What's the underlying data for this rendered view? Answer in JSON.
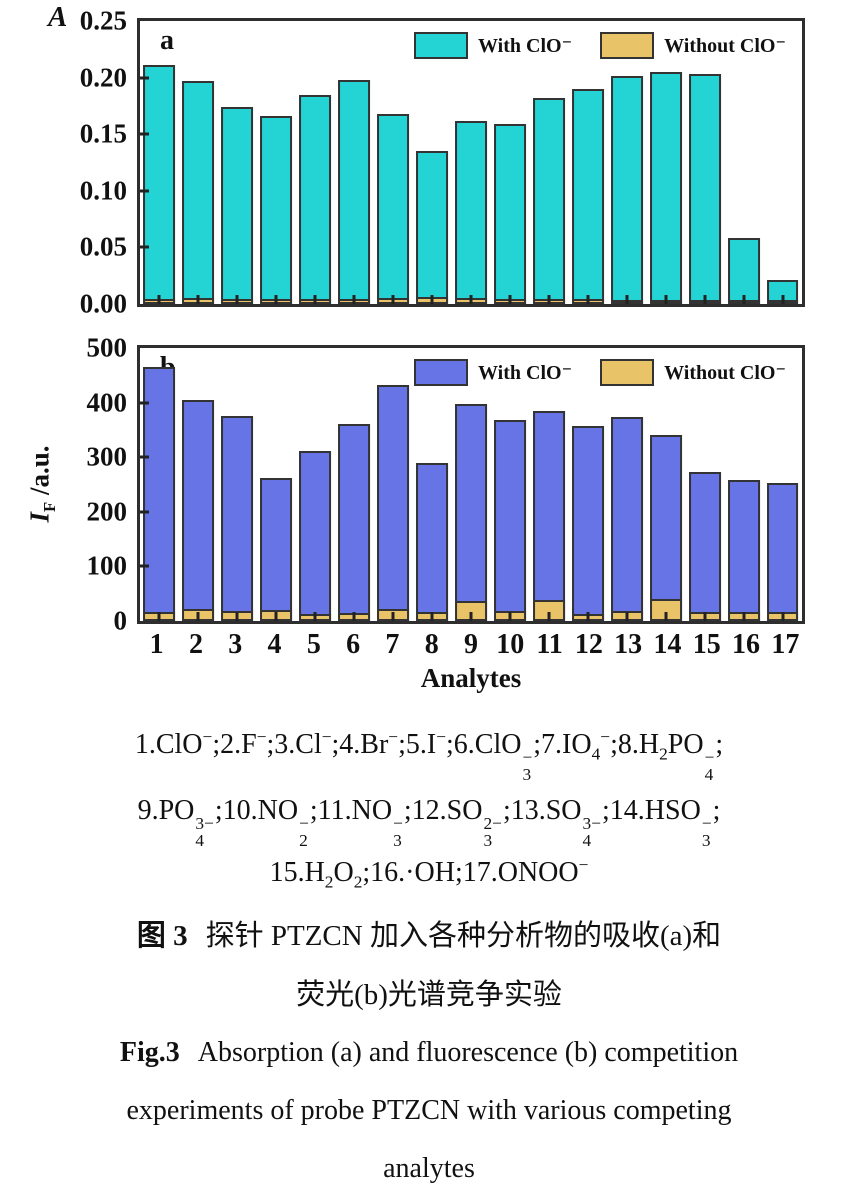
{
  "colors": {
    "cyan": "#24d3d3",
    "blue": "#6674e6",
    "tan": "#e9c368",
    "bar_border": "#333333",
    "frame": "#2e2e2e"
  },
  "chart_data": [
    {
      "type": "bar",
      "panel": "a",
      "ylabel": "A",
      "xlabel": "",
      "ylim": [
        0,
        0.25
      ],
      "yticks": [
        "0.25",
        "0.20",
        "0.15",
        "0.10",
        "0.05",
        "0.00"
      ],
      "grid": false,
      "legend_position": "top-right",
      "categories": [
        "1",
        "2",
        "3",
        "4",
        "5",
        "6",
        "7",
        "8",
        "9",
        "10",
        "11",
        "12",
        "13",
        "14",
        "15",
        "16",
        "17"
      ],
      "series": [
        {
          "name": "With ClO⁻",
          "color": "#24d3d3",
          "values": [
            0.211,
            0.197,
            0.174,
            0.166,
            0.185,
            0.198,
            0.168,
            0.135,
            0.162,
            0.159,
            0.182,
            0.19,
            0.201,
            0.205,
            0.203,
            0.058,
            0.021
          ]
        },
        {
          "name": "Without ClO⁻",
          "color": "#e9c368",
          "values": [
            0.004,
            0.005,
            0.004,
            0.004,
            0.004,
            0.004,
            0.005,
            0.006,
            0.005,
            0.004,
            0.004,
            0.004,
            0.003,
            0.003,
            0.003,
            0.003,
            0.003
          ]
        }
      ]
    },
    {
      "type": "bar",
      "panel": "b",
      "ylabel_rich": [
        [
          "i",
          "I"
        ],
        [
          "sub",
          "F"
        ],
        [
          "t",
          " /a.u."
        ]
      ],
      "xlabel": "Analytes",
      "ylim": [
        0,
        500
      ],
      "yticks": [
        "500",
        "400",
        "300",
        "200",
        "100",
        "0"
      ],
      "grid": false,
      "legend_position": "top-right",
      "categories": [
        "1",
        "2",
        "3",
        "4",
        "5",
        "6",
        "7",
        "8",
        "9",
        "10",
        "11",
        "12",
        "13",
        "14",
        "15",
        "16",
        "17"
      ],
      "series": [
        {
          "name": "With ClO⁻",
          "color": "#6674e6",
          "values": [
            465,
            405,
            375,
            262,
            312,
            360,
            432,
            289,
            398,
            368,
            385,
            358,
            373,
            340,
            273,
            258,
            252
          ]
        },
        {
          "name": "Without ClO⁻",
          "color": "#e9c368",
          "values": [
            16,
            22,
            19,
            20,
            13,
            15,
            22,
            17,
            36,
            19,
            39,
            13,
            18,
            40,
            16,
            16,
            16
          ]
        }
      ]
    }
  ],
  "analyte_key": {
    "line1": [
      [
        "t",
        "1.ClO"
      ],
      [
        "sup",
        "−"
      ],
      [
        "t",
        ";2.F"
      ],
      [
        "sup",
        "−"
      ],
      [
        "t",
        ";3.Cl"
      ],
      [
        "sup",
        "−"
      ],
      [
        "t",
        ";4.Br"
      ],
      [
        "sup",
        "−"
      ],
      [
        "t",
        ";5.I"
      ],
      [
        "sup",
        "−"
      ],
      [
        "t",
        ";6.ClO"
      ],
      [
        "ss",
        "3",
        "−"
      ],
      [
        "t",
        ";7.IO"
      ],
      [
        "sub",
        "4"
      ],
      [
        "sup",
        "−"
      ],
      [
        "t",
        ";8.H"
      ],
      [
        "sub",
        "2"
      ],
      [
        "t",
        "PO"
      ],
      [
        "ss",
        "4",
        "−"
      ],
      [
        "t",
        ";"
      ]
    ],
    "line2": [
      [
        "t",
        "9.PO"
      ],
      [
        "ss",
        "4",
        "3−"
      ],
      [
        "t",
        ";10.NO"
      ],
      [
        "ss",
        "2",
        "−"
      ],
      [
        "t",
        ";11.NO"
      ],
      [
        "ss",
        "3",
        "−"
      ],
      [
        "t",
        ";12.SO"
      ],
      [
        "ss",
        "3",
        "2−"
      ],
      [
        "t",
        ";13.SO"
      ],
      [
        "ss",
        "4",
        "3−"
      ],
      [
        "t",
        ";14.HSO"
      ],
      [
        "ss",
        "3",
        "−"
      ],
      [
        "t",
        ";"
      ]
    ],
    "line3": [
      [
        "t",
        "15.H"
      ],
      [
        "sub",
        "2"
      ],
      [
        "t",
        "O"
      ],
      [
        "sub",
        "2"
      ],
      [
        "t",
        ";16.·OH;17.ONOO"
      ],
      [
        "sup",
        "−"
      ]
    ]
  },
  "captions": {
    "zh_prefix": "图 3",
    "zh_line1": "探针 PTZCN 加入各种分析物的吸收(a)和",
    "zh_line2": "荧光(b)光谱竞争实验",
    "en_prefix": "Fig.3",
    "en_line1": "Absorption (a) and fluorescence (b) competition",
    "en_line2": "experiments of probe PTZCN with various competing",
    "en_line3": "analytes"
  }
}
